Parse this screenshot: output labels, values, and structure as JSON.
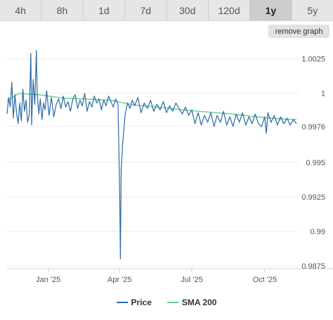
{
  "range_tabs": [
    "4h",
    "8h",
    "1d",
    "7d",
    "30d",
    "120d",
    "1y",
    "5y"
  ],
  "active_tab": "1y",
  "remove_graph_label": "remove graph",
  "colors": {
    "price": "#2b6aa6",
    "sma": "#5fcf8c",
    "active_tab_bg": "#cdcdcd"
  },
  "chart_data": {
    "type": "line",
    "x_ticks": [
      "Jan '25",
      "Apr '25",
      "Jul '25",
      "Oct '25"
    ],
    "y_ticks": [
      "1.0025",
      "1",
      "0.9976",
      "0.995",
      "0.9925",
      "0.99",
      "0.9875"
    ],
    "ylim": [
      0.9873,
      1.0035
    ],
    "xlim": [
      "2024-11-10",
      "2025-11-10"
    ],
    "grid": true,
    "legend_position": "bottom",
    "series": [
      {
        "name": "Price",
        "color": "#2b6aa6",
        "points": [
          [
            "2024-11-10",
            0.9985
          ],
          [
            "2024-11-12",
            0.9997
          ],
          [
            "2024-11-14",
            0.999
          ],
          [
            "2024-11-16",
            1.0008
          ],
          [
            "2024-11-18",
            0.9982
          ],
          [
            "2024-11-20",
            0.9999
          ],
          [
            "2024-11-22",
            0.9986
          ],
          [
            "2024-11-24",
            0.9978
          ],
          [
            "2024-11-26",
            0.9993
          ],
          [
            "2024-11-28",
            0.998
          ],
          [
            "2024-11-30",
            1.0003
          ],
          [
            "2024-12-02",
            0.9987
          ],
          [
            "2024-12-04",
            0.9995
          ],
          [
            "2024-12-06",
            0.9979
          ],
          [
            "2024-12-08",
            0.9984
          ],
          [
            "2024-12-10",
            1.0029
          ],
          [
            "2024-12-11",
            0.9977
          ],
          [
            "2024-12-13",
            1.001
          ],
          [
            "2024-12-15",
            0.9992
          ],
          [
            "2024-12-17",
            1.0031
          ],
          [
            "2024-12-18",
            1.0
          ],
          [
            "2024-12-20",
            0.9985
          ],
          [
            "2024-12-22",
            0.9996
          ],
          [
            "2024-12-24",
            0.9981
          ],
          [
            "2024-12-26",
            0.9993
          ],
          [
            "2024-12-28",
            0.9988
          ],
          [
            "2024-12-30",
            1.0002
          ],
          [
            "2025-01-02",
            0.9984
          ],
          [
            "2025-01-05",
            0.9997
          ],
          [
            "2025-01-08",
            0.9983
          ],
          [
            "2025-01-11",
            0.9992
          ],
          [
            "2025-01-14",
            0.9996
          ],
          [
            "2025-01-17",
            0.9989
          ],
          [
            "2025-01-20",
            0.9998
          ],
          [
            "2025-01-23",
            0.999
          ],
          [
            "2025-01-26",
            0.9994
          ],
          [
            "2025-01-29",
            0.9987
          ],
          [
            "2025-02-01",
            0.9996
          ],
          [
            "2025-02-04",
            0.9999
          ],
          [
            "2025-02-07",
            0.9989
          ],
          [
            "2025-02-10",
            0.9995
          ],
          [
            "2025-02-13",
            0.9991
          ],
          [
            "2025-02-16",
            1.0
          ],
          [
            "2025-02-19",
            0.9987
          ],
          [
            "2025-02-22",
            0.9994
          ],
          [
            "2025-02-25",
            0.999
          ],
          [
            "2025-02-28",
            0.9998
          ],
          [
            "2025-03-03",
            0.9993
          ],
          [
            "2025-03-06",
            0.9996
          ],
          [
            "2025-03-09",
            0.9988
          ],
          [
            "2025-03-12",
            0.9995
          ],
          [
            "2025-03-15",
            0.9991
          ],
          [
            "2025-03-18",
            0.9998
          ],
          [
            "2025-03-21",
            0.9994
          ],
          [
            "2025-03-24",
            0.999
          ],
          [
            "2025-03-27",
            0.9996
          ],
          [
            "2025-03-30",
            0.9992
          ],
          [
            "2025-04-01",
            0.993
          ],
          [
            "2025-04-02",
            0.988
          ],
          [
            "2025-04-03",
            0.9945
          ],
          [
            "2025-04-05",
            0.9965
          ],
          [
            "2025-04-08",
            0.9985
          ],
          [
            "2025-04-11",
            0.9993
          ],
          [
            "2025-04-14",
            0.9989
          ],
          [
            "2025-04-17",
            0.9995
          ],
          [
            "2025-04-20",
            0.9991
          ],
          [
            "2025-04-24",
            0.9997
          ],
          [
            "2025-04-28",
            0.9986
          ],
          [
            "2025-05-02",
            0.9993
          ],
          [
            "2025-05-06",
            0.9989
          ],
          [
            "2025-05-10",
            0.9995
          ],
          [
            "2025-05-14",
            0.9987
          ],
          [
            "2025-05-18",
            0.9992
          ],
          [
            "2025-05-22",
            0.9988
          ],
          [
            "2025-05-26",
            0.9994
          ],
          [
            "2025-05-30",
            0.9986
          ],
          [
            "2025-06-03",
            0.9991
          ],
          [
            "2025-06-07",
            0.9987
          ],
          [
            "2025-06-11",
            0.9993
          ],
          [
            "2025-06-15",
            0.9989
          ],
          [
            "2025-06-19",
            0.9985
          ],
          [
            "2025-06-23",
            0.999
          ],
          [
            "2025-06-27",
            0.9984
          ],
          [
            "2025-07-01",
            0.9988
          ],
          [
            "2025-07-05",
            0.9978
          ],
          [
            "2025-07-09",
            0.9986
          ],
          [
            "2025-07-13",
            0.9977
          ],
          [
            "2025-07-17",
            0.9984
          ],
          [
            "2025-07-21",
            0.9979
          ],
          [
            "2025-07-25",
            0.9986
          ],
          [
            "2025-07-29",
            0.9976
          ],
          [
            "2025-08-02",
            0.9984
          ],
          [
            "2025-08-06",
            0.9979
          ],
          [
            "2025-08-10",
            0.9987
          ],
          [
            "2025-08-14",
            0.9977
          ],
          [
            "2025-08-18",
            0.9983
          ],
          [
            "2025-08-22",
            0.9976
          ],
          [
            "2025-08-26",
            0.9985
          ],
          [
            "2025-08-30",
            0.9979
          ],
          [
            "2025-09-03",
            0.9986
          ],
          [
            "2025-09-07",
            0.9977
          ],
          [
            "2025-09-11",
            0.9983
          ],
          [
            "2025-09-15",
            0.9978
          ],
          [
            "2025-09-19",
            0.9985
          ],
          [
            "2025-09-23",
            0.9978
          ],
          [
            "2025-09-27",
            0.9976
          ],
          [
            "2025-10-01",
            0.9983
          ],
          [
            "2025-10-03",
            0.9971
          ],
          [
            "2025-10-05",
            0.9986
          ],
          [
            "2025-10-09",
            0.9979
          ],
          [
            "2025-10-13",
            0.9984
          ],
          [
            "2025-10-17",
            0.9977
          ],
          [
            "2025-10-21",
            0.9983
          ],
          [
            "2025-10-25",
            0.9978
          ],
          [
            "2025-10-29",
            0.9982
          ],
          [
            "2025-11-02",
            0.9977
          ],
          [
            "2025-11-06",
            0.9981
          ],
          [
            "2025-11-10",
            0.9978
          ]
        ]
      },
      {
        "name": "SMA 200",
        "color": "#5fcf8c",
        "points": [
          [
            "2024-11-10",
            0.99945
          ],
          [
            "2024-11-25",
            1.0
          ],
          [
            "2024-12-20",
            0.9999
          ],
          [
            "2025-01-20",
            0.99965
          ],
          [
            "2025-02-20",
            0.99958
          ],
          [
            "2025-03-20",
            0.9995
          ],
          [
            "2025-04-20",
            0.99915
          ],
          [
            "2025-05-20",
            0.999
          ],
          [
            "2025-06-20",
            0.9988
          ],
          [
            "2025-07-20",
            0.99865
          ],
          [
            "2025-08-20",
            0.9985
          ],
          [
            "2025-09-20",
            0.9983
          ],
          [
            "2025-10-20",
            0.99815
          ],
          [
            "2025-11-10",
            0.9981
          ]
        ]
      }
    ]
  }
}
